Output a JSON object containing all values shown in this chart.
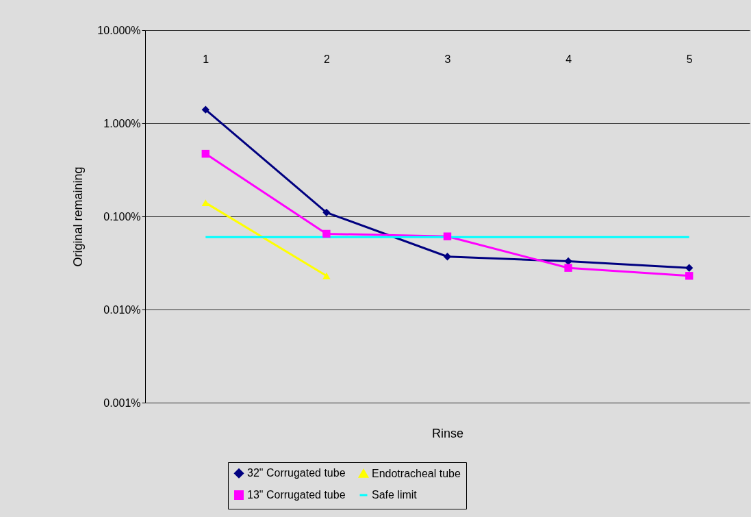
{
  "chart_data": {
    "type": "line",
    "xlabel": "Rinse",
    "ylabel": "Original remaining",
    "categories": [
      "1",
      "2",
      "3",
      "4",
      "5"
    ],
    "series": [
      {
        "name": "32\" Corrugated tube",
        "color": "#000080",
        "marker": "diamond",
        "values": [
          1.4,
          0.11,
          0.037,
          0.033,
          0.028
        ]
      },
      {
        "name": "13\" Corrugated tube",
        "color": "#ff00ff",
        "marker": "square",
        "values": [
          0.47,
          0.065,
          0.061,
          0.028,
          0.023
        ]
      },
      {
        "name": "Endotracheal tube",
        "color": "#ffff00",
        "marker": "triangle",
        "values": [
          0.14,
          0.023,
          null,
          null,
          null
        ]
      },
      {
        "name": "Safe limit",
        "color": "#00ffff",
        "marker": "none",
        "values": [
          0.06,
          0.06,
          0.06,
          0.06,
          0.06
        ]
      }
    ],
    "log": true,
    "ylim": [
      0.001,
      10
    ],
    "yticks": [
      {
        "value": 10,
        "label": "10.000%"
      },
      {
        "value": 1,
        "label": "1.000%"
      },
      {
        "value": 0.1,
        "label": "0.100%"
      },
      {
        "value": 0.01,
        "label": "0.010%"
      },
      {
        "value": 0.001,
        "label": "0.001%"
      }
    ],
    "grid": "y",
    "legend": "bottom"
  }
}
